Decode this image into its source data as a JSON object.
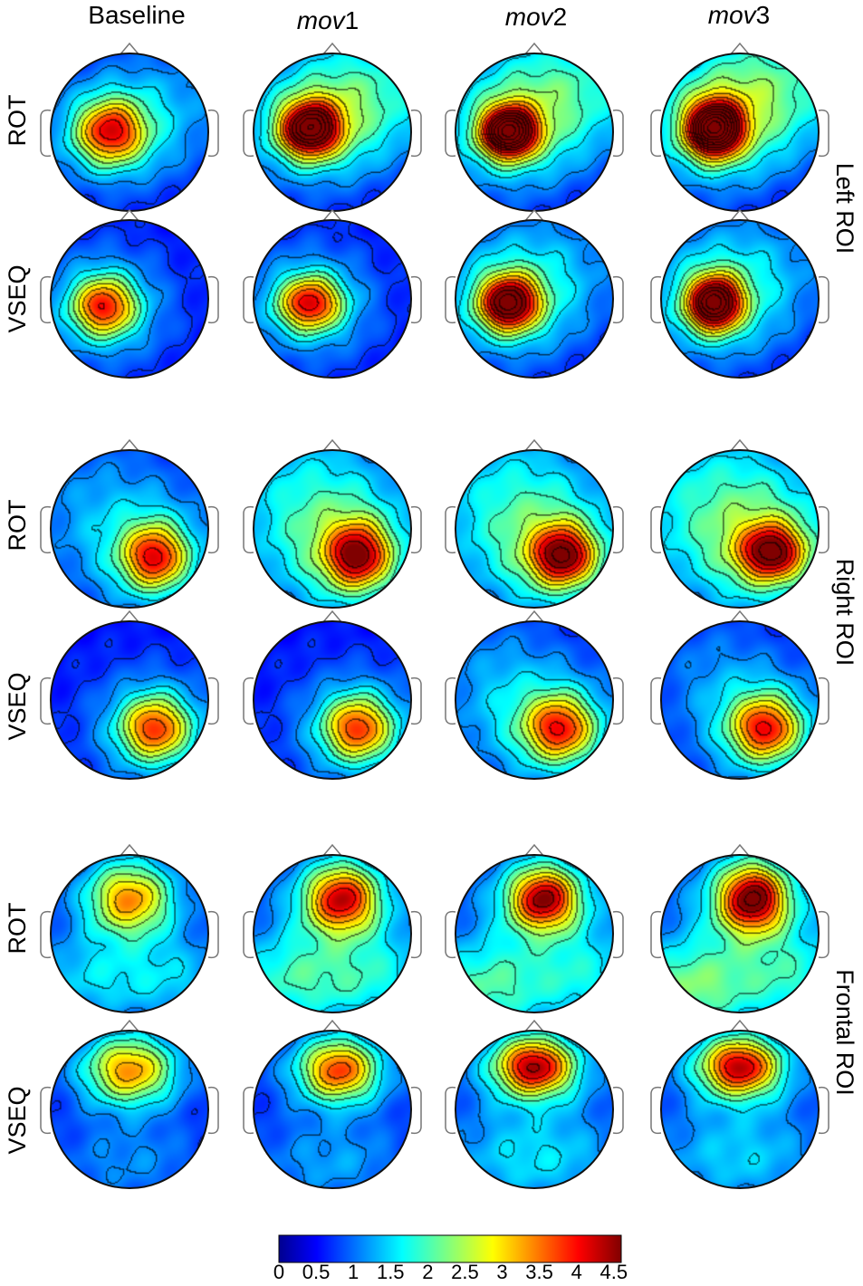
{
  "column_headers": [
    {
      "prefix": "Baseline",
      "suffix": ""
    },
    {
      "prefix": "mov",
      "suffix": "1"
    },
    {
      "prefix": "mov",
      "suffix": "2"
    },
    {
      "prefix": "mov",
      "suffix": "3"
    }
  ],
  "row_labels": [
    "ROT",
    "VSEQ",
    "ROT",
    "VSEQ",
    "ROT",
    "VSEQ"
  ],
  "roi_labels": [
    "Left ROI",
    "Right ROI",
    "Frontal ROI"
  ],
  "colorbar": {
    "min": 0,
    "max": 4.6,
    "tick_labels": [
      "0",
      "0.5",
      "1",
      "1.5",
      "2",
      "2.5",
      "3",
      "3.5",
      "4",
      "4.5"
    ],
    "tick_values": [
      0,
      0.5,
      1,
      1.5,
      2,
      2.5,
      3,
      3.5,
      4,
      4.5
    ],
    "colormap": "jet"
  },
  "maps": [
    {
      "roi": "left",
      "condition": "ROT",
      "blobs": [
        [
          [
            0.38,
            0.5,
            0.15,
            0.14,
            2.6
          ],
          [
            0.38,
            0.5,
            0.33,
            0.27,
            0.9
          ],
          [
            0.78,
            0.3,
            0.35,
            0.3,
            0.5
          ]
        ],
        [
          [
            0.36,
            0.48,
            0.13,
            0.12,
            3.8
          ],
          [
            0.36,
            0.48,
            0.32,
            0.27,
            1.1
          ],
          [
            0.72,
            0.25,
            0.38,
            0.3,
            1.2
          ]
        ],
        [
          [
            0.34,
            0.5,
            0.12,
            0.11,
            4.4
          ],
          [
            0.34,
            0.5,
            0.32,
            0.28,
            1.2
          ],
          [
            0.72,
            0.22,
            0.4,
            0.3,
            1.2
          ]
        ],
        [
          [
            0.34,
            0.48,
            0.12,
            0.12,
            4.6
          ],
          [
            0.34,
            0.48,
            0.33,
            0.28,
            1.3
          ],
          [
            0.7,
            0.2,
            0.4,
            0.3,
            1.3
          ]
        ]
      ]
    },
    {
      "roi": "left",
      "condition": "VSEQ",
      "blobs": [
        [
          [
            0.34,
            0.55,
            0.14,
            0.13,
            2.6
          ],
          [
            0.34,
            0.55,
            0.32,
            0.28,
            0.9
          ]
        ],
        [
          [
            0.36,
            0.53,
            0.14,
            0.12,
            2.8
          ],
          [
            0.36,
            0.53,
            0.32,
            0.28,
            0.9
          ]
        ],
        [
          [
            0.34,
            0.53,
            0.13,
            0.12,
            3.6
          ],
          [
            0.34,
            0.53,
            0.32,
            0.28,
            1.0
          ],
          [
            0.6,
            0.3,
            0.4,
            0.3,
            0.6
          ]
        ],
        [
          [
            0.34,
            0.53,
            0.12,
            0.12,
            4.0
          ],
          [
            0.34,
            0.53,
            0.33,
            0.28,
            1.0
          ],
          [
            0.6,
            0.3,
            0.4,
            0.3,
            0.6
          ]
        ]
      ]
    },
    {
      "roi": "right",
      "condition": "ROT",
      "blobs": [
        [
          [
            0.66,
            0.68,
            0.14,
            0.14,
            2.5
          ],
          [
            0.66,
            0.68,
            0.32,
            0.28,
            0.9
          ],
          [
            0.3,
            0.35,
            0.4,
            0.35,
            0.6
          ]
        ],
        [
          [
            0.66,
            0.67,
            0.14,
            0.14,
            2.7
          ],
          [
            0.66,
            0.67,
            0.33,
            0.3,
            1.0
          ],
          [
            0.35,
            0.35,
            0.4,
            0.4,
            1.1
          ]
        ],
        [
          [
            0.68,
            0.67,
            0.14,
            0.13,
            2.9
          ],
          [
            0.68,
            0.67,
            0.33,
            0.3,
            1.0
          ],
          [
            0.35,
            0.35,
            0.4,
            0.4,
            1.1
          ]
        ],
        [
          [
            0.7,
            0.65,
            0.14,
            0.12,
            2.8
          ],
          [
            0.7,
            0.65,
            0.33,
            0.3,
            1.1
          ],
          [
            0.35,
            0.35,
            0.45,
            0.4,
            1.2
          ]
        ]
      ]
    },
    {
      "roi": "right",
      "condition": "VSEQ",
      "blobs": [
        [
          [
            0.66,
            0.68,
            0.15,
            0.14,
            2.4
          ],
          [
            0.66,
            0.68,
            0.32,
            0.28,
            0.9
          ]
        ],
        [
          [
            0.66,
            0.68,
            0.15,
            0.14,
            2.4
          ],
          [
            0.66,
            0.68,
            0.32,
            0.28,
            0.9
          ]
        ],
        [
          [
            0.66,
            0.68,
            0.15,
            0.14,
            2.4
          ],
          [
            0.66,
            0.68,
            0.33,
            0.3,
            1.0
          ],
          [
            0.25,
            0.4,
            0.3,
            0.35,
            0.6
          ]
        ],
        [
          [
            0.66,
            0.68,
            0.15,
            0.14,
            2.5
          ],
          [
            0.66,
            0.68,
            0.33,
            0.3,
            1.0
          ],
          [
            0.3,
            0.3,
            0.3,
            0.3,
            0.4
          ]
        ]
      ]
    },
    {
      "roi": "frontal",
      "condition": "ROT",
      "blobs": [
        [
          [
            0.5,
            0.28,
            0.17,
            0.15,
            1.9
          ],
          [
            0.5,
            0.28,
            0.32,
            0.25,
            0.9
          ],
          [
            0.2,
            0.8,
            0.3,
            0.2,
            0.8
          ],
          [
            0.8,
            0.8,
            0.3,
            0.2,
            0.8
          ]
        ],
        [
          [
            0.56,
            0.28,
            0.15,
            0.14,
            2.6
          ],
          [
            0.56,
            0.28,
            0.32,
            0.25,
            1.1
          ],
          [
            0.2,
            0.8,
            0.3,
            0.22,
            1.2
          ],
          [
            0.8,
            0.8,
            0.3,
            0.22,
            1.0
          ]
        ],
        [
          [
            0.56,
            0.28,
            0.14,
            0.13,
            2.8
          ],
          [
            0.56,
            0.28,
            0.32,
            0.25,
            1.2
          ],
          [
            0.15,
            0.85,
            0.3,
            0.22,
            1.4
          ],
          [
            0.85,
            0.8,
            0.3,
            0.22,
            1.0
          ]
        ],
        [
          [
            0.58,
            0.28,
            0.14,
            0.14,
            3.0
          ],
          [
            0.58,
            0.28,
            0.32,
            0.26,
            1.3
          ],
          [
            0.15,
            0.85,
            0.3,
            0.22,
            1.6
          ],
          [
            0.85,
            0.8,
            0.3,
            0.22,
            1.1
          ]
        ]
      ]
    },
    {
      "roi": "frontal",
      "condition": "VSEQ",
      "blobs": [
        [
          [
            0.5,
            0.25,
            0.18,
            0.14,
            1.9
          ],
          [
            0.5,
            0.25,
            0.32,
            0.22,
            0.9
          ],
          [
            0.5,
            0.85,
            0.4,
            0.2,
            0.6
          ]
        ],
        [
          [
            0.54,
            0.25,
            0.16,
            0.13,
            2.3
          ],
          [
            0.54,
            0.25,
            0.32,
            0.22,
            0.9
          ],
          [
            0.5,
            0.85,
            0.4,
            0.2,
            0.7
          ]
        ],
        [
          [
            0.5,
            0.23,
            0.16,
            0.12,
            2.8
          ],
          [
            0.5,
            0.23,
            0.33,
            0.22,
            1.1
          ],
          [
            0.5,
            0.82,
            0.45,
            0.22,
            1.0
          ]
        ],
        [
          [
            0.5,
            0.23,
            0.16,
            0.12,
            2.7
          ],
          [
            0.5,
            0.23,
            0.33,
            0.22,
            1.1
          ],
          [
            0.5,
            0.82,
            0.45,
            0.22,
            0.9
          ]
        ]
      ]
    }
  ]
}
